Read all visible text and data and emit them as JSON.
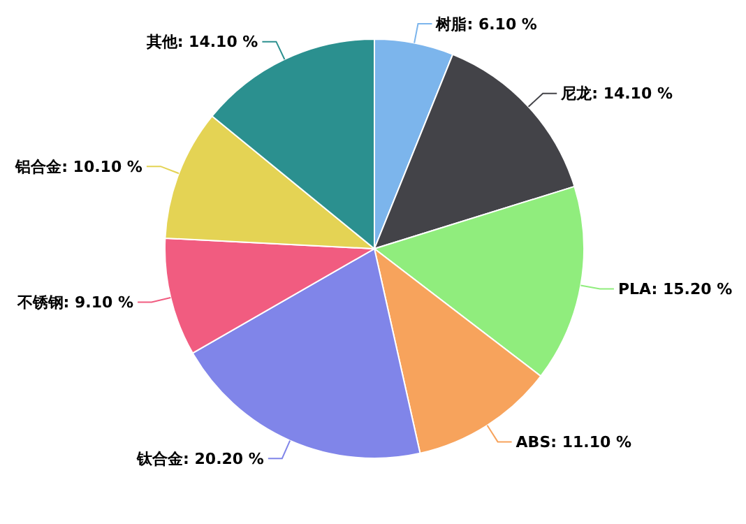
{
  "chart_data": {
    "type": "pie",
    "categories": [
      "树脂",
      "尼龙",
      "PLA",
      "ABS",
      "钛合金",
      "不锈钢",
      "铝合金",
      "其他"
    ],
    "values": [
      6.1,
      14.1,
      15.2,
      11.1,
      20.2,
      9.1,
      10.1,
      14.1
    ],
    "value_labels": [
      "6.10 %",
      "14.10 %",
      "15.20 %",
      "11.10 %",
      "20.20 %",
      "9.10 %",
      "10.10 %",
      "14.10 %"
    ],
    "colors": [
      "#7cb5ec",
      "#434348",
      "#90ed7d",
      "#f7a35c",
      "#8085e9",
      "#f15c80",
      "#e4d354",
      "#2b908f"
    ]
  }
}
